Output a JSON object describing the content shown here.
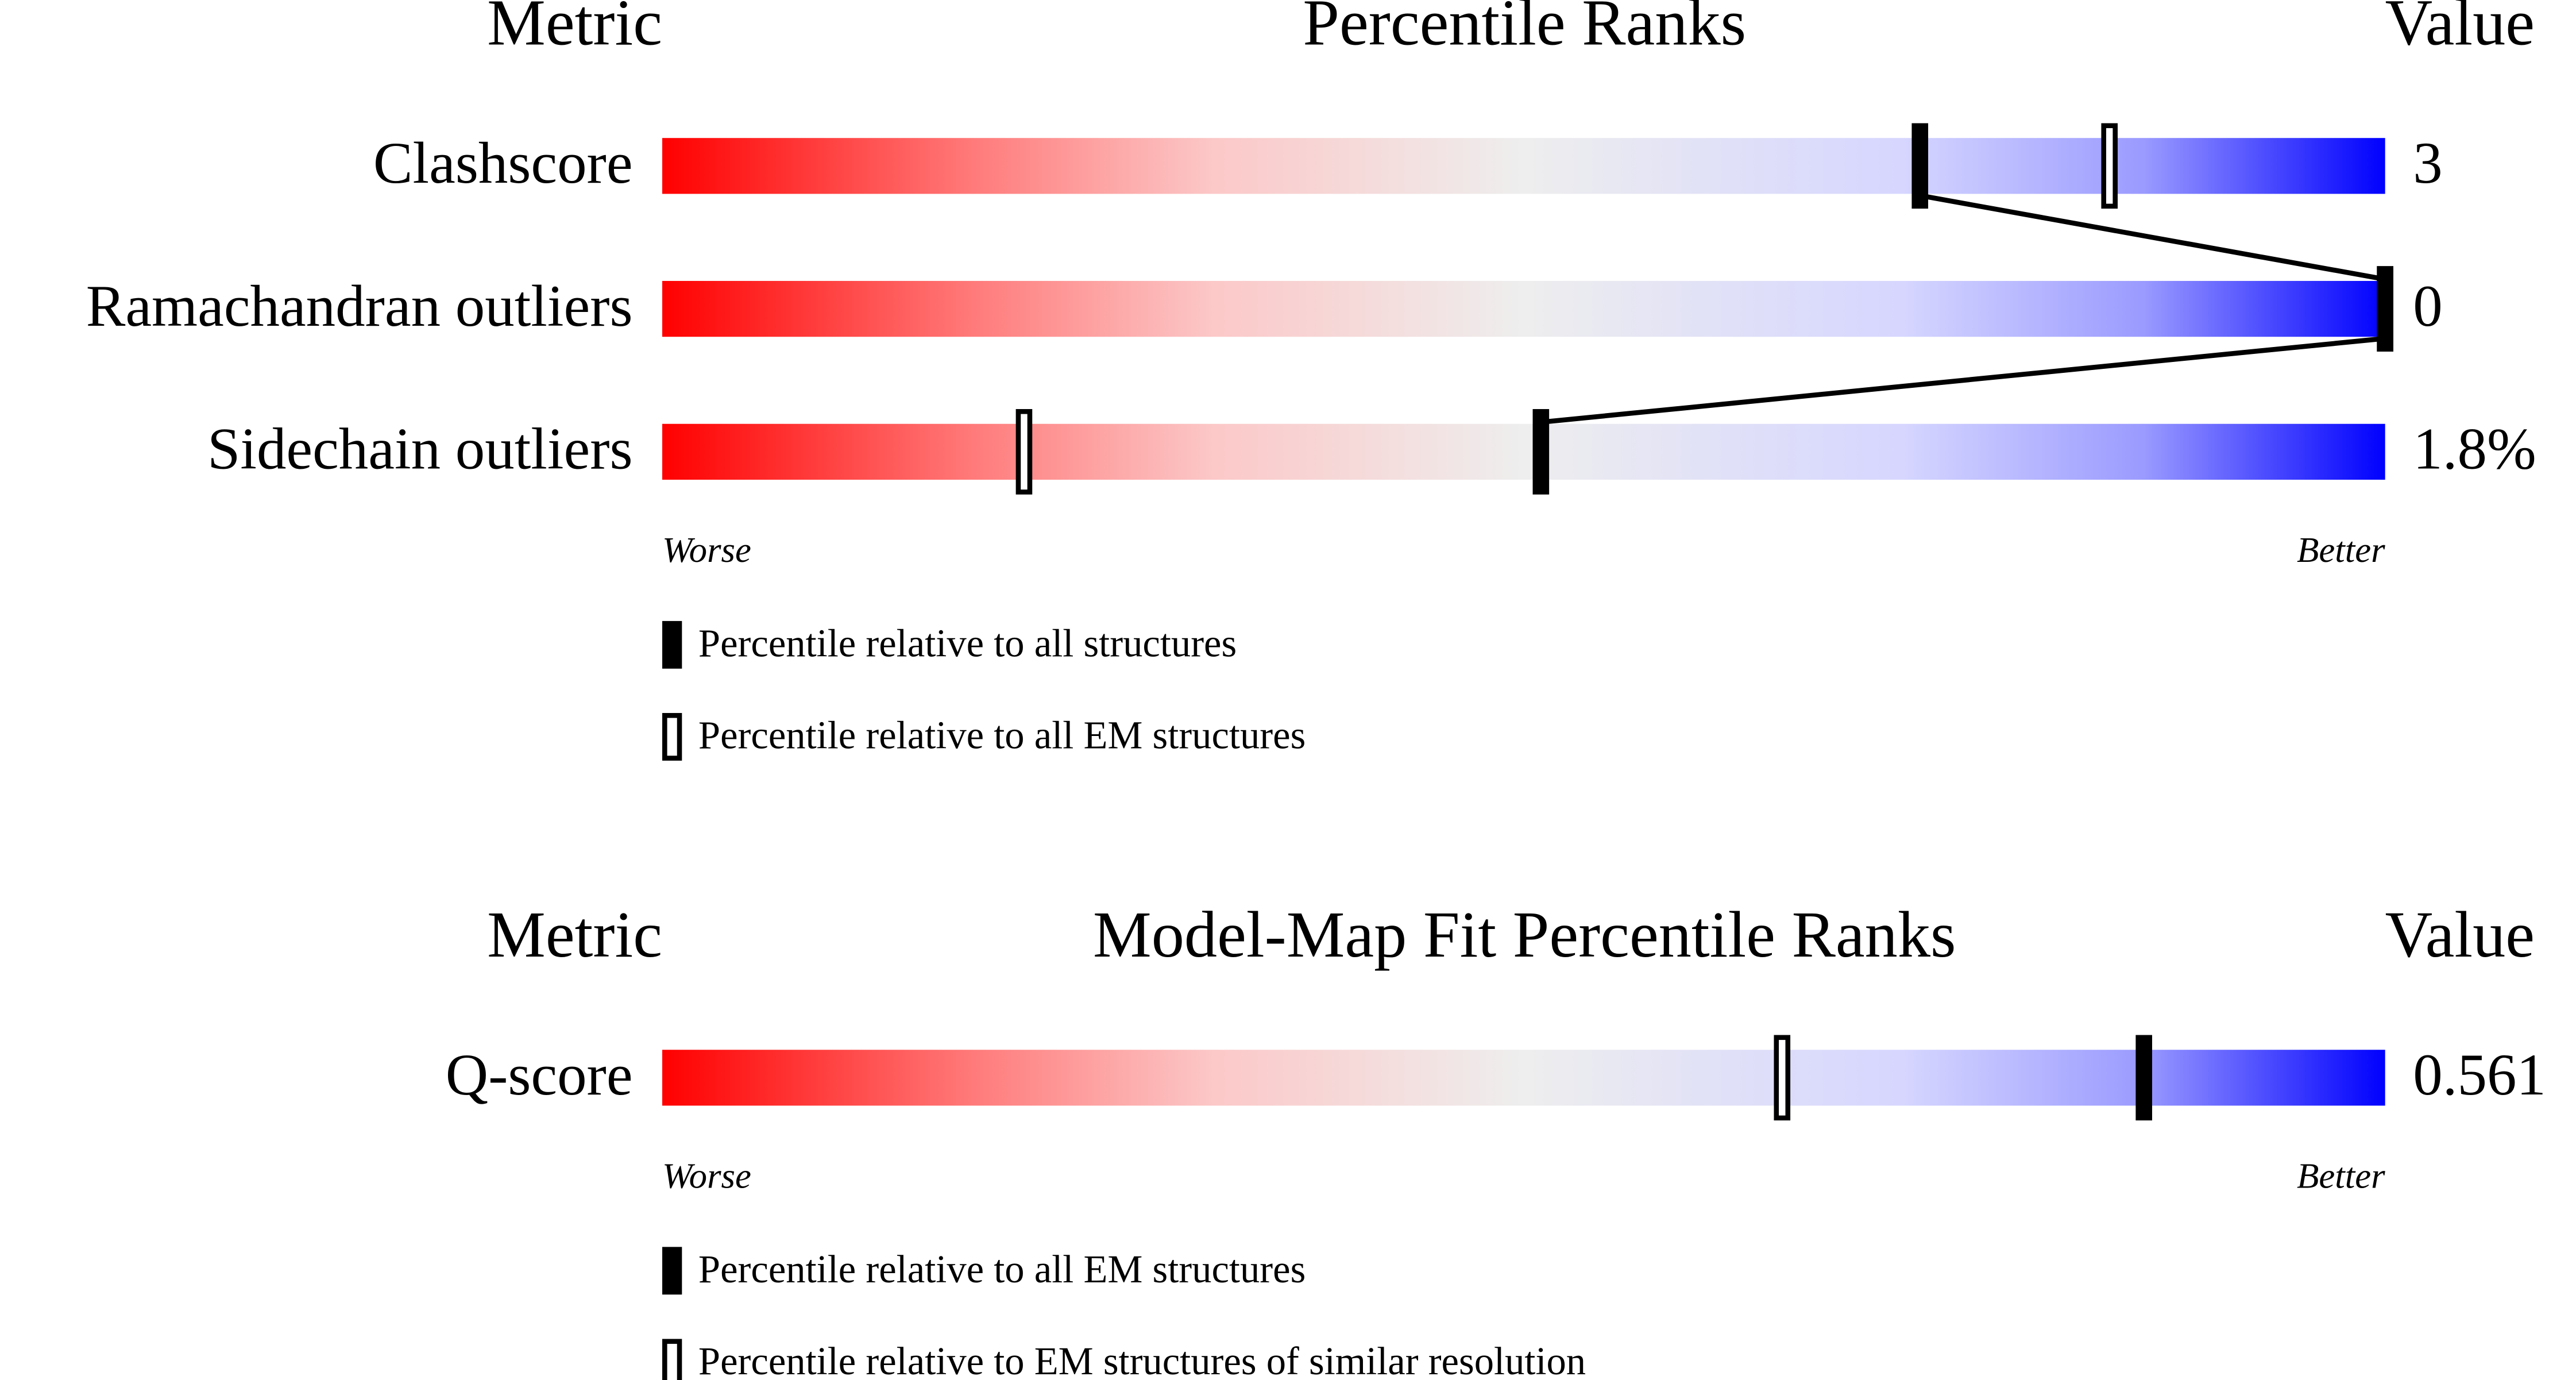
{
  "chart_data": [
    {
      "type": "percentile",
      "metric_header": "Metric",
      "title": "Percentile Ranks",
      "value_header": "Value",
      "categories": [
        "Clashscore",
        "Ramachandran outliers",
        "Sidechain outliers"
      ],
      "metric_values": [
        "3",
        "0",
        "1.8%"
      ],
      "xlim": [
        0,
        100
      ],
      "low_label": "Worse",
      "high_label": "Better",
      "series": [
        {
          "name": "Percentile relative to all structures",
          "color": "#000000",
          "style": "filled",
          "values": [
            73,
            100,
            51
          ]
        },
        {
          "name": "Percentile relative to all EM structures",
          "color": "#000000",
          "style": "hollow",
          "values": [
            84,
            100,
            21
          ]
        }
      ],
      "connect_series": 0
    },
    {
      "type": "percentile",
      "metric_header": "Metric",
      "title": "Model-Map Fit Percentile Ranks",
      "value_header": "Value",
      "categories": [
        "Q-score"
      ],
      "metric_values": [
        "0.561"
      ],
      "xlim": [
        0,
        100
      ],
      "low_label": "Worse",
      "high_label": "Better",
      "series": [
        {
          "name": "Percentile relative to all EM structures",
          "color": "#000000",
          "style": "filled",
          "values": [
            86
          ]
        },
        {
          "name": "Percentile relative to EM structures of similar resolution",
          "color": "#000000",
          "style": "hollow",
          "values": [
            65
          ]
        }
      ]
    }
  ]
}
